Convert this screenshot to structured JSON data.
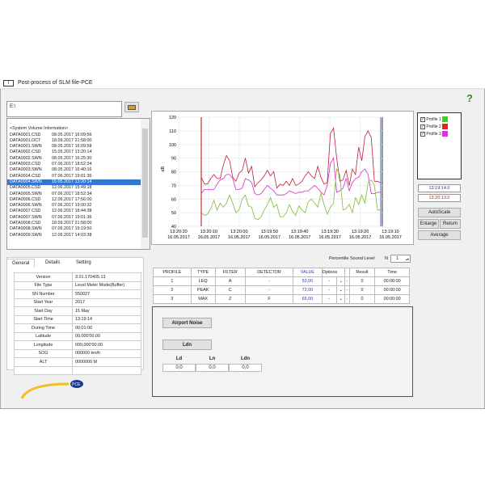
{
  "window": {
    "title": "Post-process of SLM file-PCE",
    "help_icon": "question-mark-icon"
  },
  "file": {
    "path": "E:\\",
    "folder_icon": "open-folder-icon"
  },
  "files": [
    {
      "name": "..",
      "date": ""
    },
    {
      "name": "<System Volume Information>",
      "date": ""
    },
    {
      "name": "DATA0001.CSD",
      "date": "08.05.2017 16:09:56"
    },
    {
      "name": "DATA0001.OCT",
      "date": "18.09.2017 21:58:00"
    },
    {
      "name": "DATA0001.SWN",
      "date": "08.05.2017 16:09:58"
    },
    {
      "name": "DATA0002.CSD",
      "date": "15.05.2017 13:20:14"
    },
    {
      "name": "DATA0002.SWN",
      "date": "08.05.2017 16:25:30"
    },
    {
      "name": "DATA0003.CSD",
      "date": "07.06.2017 18:52:34"
    },
    {
      "name": "DATA0003.SWN",
      "date": "08.05.2017 16:40:16"
    },
    {
      "name": "DATA0004.CSD",
      "date": "07.06.2017 19:01:36"
    },
    {
      "name": "DATA0004.SWN",
      "date": "15.05.2017 13:20:14",
      "selected": true
    },
    {
      "name": "DATA0005.CSD",
      "date": "12.06.2017 15:49:18"
    },
    {
      "name": "DATA0005.SWN",
      "date": "07.06.2017 18:52:34"
    },
    {
      "name": "DATA0006.CSD",
      "date": "12.06.2017 17:56:00"
    },
    {
      "name": "DATA0006.SWN",
      "date": "07.06.2017 19:00:32"
    },
    {
      "name": "DATA0007.CSD",
      "date": "12.06.2017 18:44:38"
    },
    {
      "name": "DATA0007.SWN",
      "date": "07.06.2017 19:01:36"
    },
    {
      "name": "DATA0008.CSD",
      "date": "18.09.2017 21:58:00"
    },
    {
      "name": "DATA0008.SWN",
      "date": "07.06.2017 19:19:50"
    },
    {
      "name": "DATA0009.SWN",
      "date": "12.06.2017 14:03:38"
    }
  ],
  "tabs": [
    "General",
    "Details",
    "Setting"
  ],
  "properties": [
    [
      "Version",
      "3.01.170405.13"
    ],
    [
      "File Type",
      "Level Meter Mode(Buffer)"
    ],
    [
      "SN Number",
      "550027"
    ],
    [
      "Start Year",
      "2017"
    ],
    [
      "Start Day",
      "15 May"
    ],
    [
      "Start Time",
      "13:19:14"
    ],
    [
      "During Time",
      "00:01:00"
    ],
    [
      "Latitude",
      "00,000'00.00"
    ],
    [
      "Longitude",
      "000,000'00.00"
    ],
    [
      "SOG",
      "000000 km/h"
    ],
    [
      "ALT",
      "0000000 M"
    ],
    [
      "",
      ""
    ]
  ],
  "logo": "PCE",
  "chart_data": {
    "type": "line",
    "ylabel": "dB",
    "ylim": [
      40,
      120
    ],
    "yticks": [
      40,
      50,
      60,
      70,
      80,
      90,
      100,
      110,
      120
    ],
    "xticks": [
      "13:20:20\n16.05.2017",
      "13:20:10\n16.05.2017",
      "13:20:00\n16.05.2017",
      "13:19:50\n16.05.2017",
      "13:19:40\n16.05.2017",
      "13:19:30\n16.05.2017",
      "13:19:20\n16.05.2017",
      "13:19:10\n16.05.2017"
    ],
    "cursor_start": "13:20:14",
    "cursor_end": "13:19:14",
    "grid": true,
    "series": [
      {
        "name": "Profile 2",
        "color": "#c0203a",
        "values": [
          76,
          71,
          71,
          75,
          78,
          75,
          75,
          85,
          92,
          88,
          76,
          73,
          79,
          81,
          90,
          79,
          84,
          69,
          72,
          74,
          77,
          81,
          77,
          80,
          68,
          71,
          70,
          73,
          70,
          75,
          70,
          71,
          73,
          77,
          80,
          77,
          75,
          84,
          76,
          71,
          72,
          108,
          112,
          90,
          73,
          74,
          81,
          70,
          82,
          78,
          98,
          88,
          106,
          110,
          105,
          73,
          73,
          72
        ]
      },
      {
        "name": "Profile 3",
        "color": "#d030c8",
        "values": [
          64,
          67,
          67,
          67,
          67,
          71,
          74,
          75,
          78,
          78,
          75,
          67,
          67,
          68,
          75,
          74,
          72,
          64,
          63,
          64,
          67,
          70,
          68,
          66,
          63,
          63,
          63,
          64,
          66,
          65,
          64,
          65,
          65,
          66,
          66,
          68,
          70,
          68,
          65,
          63,
          70,
          86,
          90,
          65,
          66,
          68,
          75,
          66,
          72,
          75,
          76,
          80,
          82,
          78,
          64,
          64,
          65,
          65
        ]
      },
      {
        "name": "Profile 1",
        "color": "#7dbb3a",
        "values": [
          50,
          48,
          49,
          53,
          59,
          52,
          57,
          54,
          57,
          63,
          57,
          50,
          52,
          60,
          63,
          55,
          54,
          46,
          45,
          47,
          52,
          56,
          61,
          54,
          56,
          47,
          47,
          50,
          56,
          51,
          48,
          55,
          52,
          50,
          58,
          60,
          57,
          54,
          64,
          56,
          49,
          54,
          57,
          82,
          78,
          52,
          53,
          56,
          50,
          61,
          56,
          63,
          57,
          72,
          74,
          70,
          52,
          52
        ]
      }
    ]
  },
  "legend": [
    {
      "label": "Profile 1",
      "color": "#44cc22",
      "checked": true
    },
    {
      "label": "Profile 2",
      "color": "#ee2222",
      "checked": true
    },
    {
      "label": "Profile 3",
      "color": "#ee22ee",
      "checked": true
    }
  ],
  "cursor_times": {
    "blue": "13:19:14.0",
    "red": "13:20:13.0"
  },
  "buttons": {
    "autoscale": "AutoScale",
    "enlarge": "Enlarge",
    "return": "Return",
    "average": "Average",
    "airport": "Airport Noise",
    "ldn": "Ldn"
  },
  "percentile": {
    "label": "Percentile Sound Level",
    "n_label": "N",
    "value": "1"
  },
  "measure": {
    "headers": [
      "PROFILE",
      "TYPE",
      "FILTER",
      "DETECTOR",
      "VALUE",
      "Options",
      "",
      "Result",
      "Time"
    ],
    "rows": [
      [
        "1",
        "LEQ",
        "A",
        "-",
        "53,00",
        "-",
        "-",
        "0",
        "00:00:00"
      ],
      [
        "2",
        "PEAK",
        "C",
        "-",
        "72,00",
        "-",
        "-",
        "0",
        "00:00:00"
      ],
      [
        "3",
        "MAX",
        "Z",
        "F",
        "65,00",
        "-",
        "-",
        "0",
        "00:00:00"
      ]
    ]
  },
  "ldn": {
    "labels": [
      "Ld",
      "Ln",
      "Ldn"
    ],
    "values": [
      "0,0",
      "0,0",
      "0,0"
    ]
  }
}
